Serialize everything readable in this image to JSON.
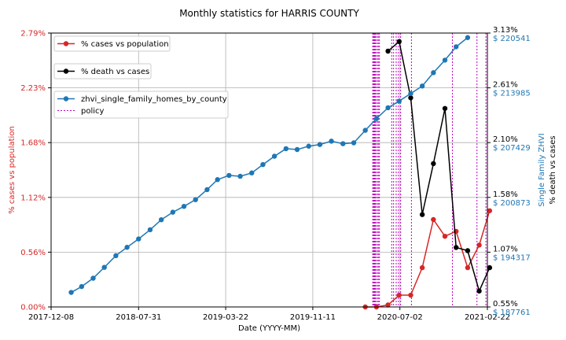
{
  "chart_data": {
    "type": "line",
    "title": "Monthly statistics for HARRIS COUNTY",
    "xlabel": "Date (YYYY-MM)",
    "x_range": [
      "2017-12-08",
      "2021-02-22"
    ],
    "x_ticks": [
      "2017-12-08",
      "2018-07-31",
      "2019-03-22",
      "2019-11-11",
      "2020-07-02",
      "2021-02-22"
    ],
    "axes": {
      "left": {
        "label": "% cases vs population",
        "color": "#d62728",
        "range": [
          0,
          2.79
        ],
        "ticks": [
          "0.00%",
          "0.56%",
          "1.12%",
          "1.68%",
          "2.23%",
          "2.79%"
        ]
      },
      "right_inner": {
        "label": "% death vs cases",
        "color": "#000000",
        "range": [
          0.55,
          3.13
        ],
        "ticks": [
          "0.55%",
          "1.07%",
          "1.58%",
          "2.10%",
          "2.61%",
          "3.13%"
        ]
      },
      "right_outer": {
        "label": "Single Family ZHVI",
        "color": "#1f77b4",
        "range": [
          187761,
          220541
        ],
        "ticks": [
          "$ 187761",
          "$ 194317",
          "$ 200873",
          "$ 207429",
          "$ 213985",
          "$ 220541"
        ]
      }
    },
    "grid": true,
    "legend_position": "top-left",
    "series": [
      {
        "name": "% cases vs population",
        "axis": "left",
        "color": "#d62728",
        "points": [
          [
            "2020-03-31",
            0.0
          ],
          [
            "2020-04-30",
            0.0
          ],
          [
            "2020-05-31",
            0.02
          ],
          [
            "2020-06-30",
            0.12
          ],
          [
            "2020-07-31",
            0.12
          ],
          [
            "2020-08-31",
            0.4
          ],
          [
            "2020-09-30",
            0.89
          ],
          [
            "2020-10-31",
            0.72
          ],
          [
            "2020-11-30",
            0.77
          ],
          [
            "2020-12-31",
            0.4
          ],
          [
            "2021-01-31",
            0.63
          ],
          [
            "2021-02-28",
            0.98
          ]
        ]
      },
      {
        "name": "% death vs cases",
        "axis": "right_inner",
        "color": "#000000",
        "points": [
          [
            "2020-05-31",
            2.96
          ],
          [
            "2020-06-30",
            3.05
          ],
          [
            "2020-07-31",
            2.52
          ],
          [
            "2020-08-31",
            1.42
          ],
          [
            "2020-09-30",
            1.9
          ],
          [
            "2020-10-31",
            2.42
          ],
          [
            "2020-11-30",
            1.11
          ],
          [
            "2020-12-31",
            1.08
          ],
          [
            "2021-01-31",
            0.7
          ],
          [
            "2021-02-28",
            0.92
          ]
        ]
      },
      {
        "name": "zhvi_single_family_homes_by_county",
        "axis": "right_outer",
        "color": "#1f77b4",
        "points": [
          [
            "2018-01-31",
            189500
          ],
          [
            "2018-02-28",
            190200
          ],
          [
            "2018-03-31",
            191200
          ],
          [
            "2018-04-30",
            192500
          ],
          [
            "2018-05-31",
            193900
          ],
          [
            "2018-06-30",
            194900
          ],
          [
            "2018-07-31",
            195900
          ],
          [
            "2018-08-31",
            197000
          ],
          [
            "2018-09-30",
            198200
          ],
          [
            "2018-10-31",
            199100
          ],
          [
            "2018-11-30",
            199800
          ],
          [
            "2018-12-31",
            200600
          ],
          [
            "2019-01-31",
            201800
          ],
          [
            "2019-02-28",
            203000
          ],
          [
            "2019-03-31",
            203500
          ],
          [
            "2019-04-30",
            203400
          ],
          [
            "2019-05-31",
            203800
          ],
          [
            "2019-06-30",
            204800
          ],
          [
            "2019-07-31",
            205800
          ],
          [
            "2019-08-31",
            206700
          ],
          [
            "2019-09-30",
            206600
          ],
          [
            "2019-10-31",
            207000
          ],
          [
            "2019-11-30",
            207200
          ],
          [
            "2019-12-31",
            207600
          ],
          [
            "2020-01-31",
            207300
          ],
          [
            "2020-02-29",
            207400
          ],
          [
            "2020-03-31",
            208900
          ],
          [
            "2020-04-30",
            210300
          ],
          [
            "2020-05-31",
            211600
          ],
          [
            "2020-06-30",
            212400
          ],
          [
            "2020-07-31",
            213300
          ],
          [
            "2020-08-31",
            214200
          ],
          [
            "2020-09-30",
            215800
          ],
          [
            "2020-10-31",
            217300
          ],
          [
            "2020-11-30",
            218900
          ],
          [
            "2020-12-31",
            220000
          ]
        ]
      },
      {
        "name": "policy",
        "type": "vlines",
        "color": "#bf00bf",
        "dates": [
          "2020-04-20",
          "2020-04-22",
          "2020-04-24",
          "2020-04-26",
          "2020-04-28",
          "2020-05-02",
          "2020-05-05",
          "2020-05-08",
          "2020-06-10",
          "2020-06-15",
          "2020-06-22",
          "2020-06-28",
          "2020-07-04",
          "2020-08-02",
          "2020-11-20",
          "2021-01-25",
          "2021-02-18"
        ]
      }
    ]
  }
}
